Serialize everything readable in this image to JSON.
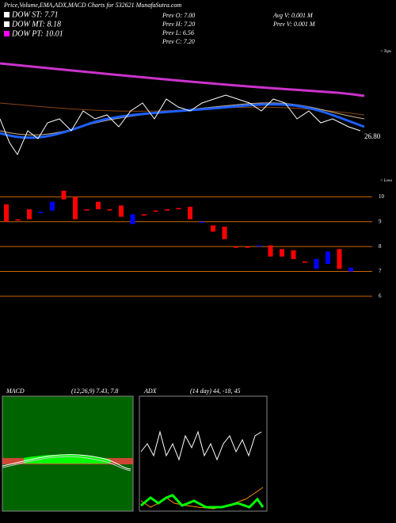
{
  "header": {
    "title": "Price,Volume,EMA,ADX,MACD Charts for 532621 MunafaSutra.com",
    "legend": [
      "DOW ST: 7.71",
      "DOW MT: 8.18",
      "DOW PT: 10.01"
    ],
    "prev": [
      "Prev  O: 7.00",
      "Prev  H: 7.20",
      "Prev  L: 6.56",
      "Prev  C: 7.20"
    ],
    "volume": [
      "Avg  V: 0.001 M",
      "Prev  V: 0.001 M"
    ]
  },
  "price_panel": {
    "last_label": "26.80",
    "tops": "< Tops",
    "lows": "< Lows"
  },
  "chart_data": {
    "type": "candlestick",
    "ylim": [
      5.55,
      10.3
    ],
    "yticks": [
      10,
      9,
      8,
      7,
      6
    ],
    "up_color": "#0000ff",
    "down_color": "#ff0000",
    "open": [
      9.7,
      9.1,
      9.5,
      9.35,
      9.45,
      10.25,
      10.0,
      9.5,
      9.8,
      9.5,
      9.65,
      8.9,
      9.3,
      9.45,
      9.5,
      9.55,
      9.6,
      8.98,
      8.85,
      8.8,
      8.0,
      8.0,
      8.0,
      8.05,
      7.9,
      7.85,
      7.4,
      7.1,
      7.3,
      7.9,
      7.0
    ],
    "close": [
      9.0,
      9.05,
      9.1,
      9.4,
      9.8,
      9.9,
      9.1,
      9.45,
      9.5,
      9.45,
      9.2,
      9.3,
      9.25,
      9.4,
      9.45,
      9.5,
      9.1,
      9.0,
      8.6,
      8.3,
      7.98,
      7.97,
      8.05,
      7.6,
      7.6,
      7.5,
      7.35,
      7.5,
      7.8,
      7.1,
      7.15
    ]
  },
  "macd_panel": {
    "label": "MACD",
    "params": "(12,26,9) 7.43, 7.8"
  },
  "adx_panel": {
    "label": "ADX",
    "params": "(14 day) 44, -18, 45"
  }
}
